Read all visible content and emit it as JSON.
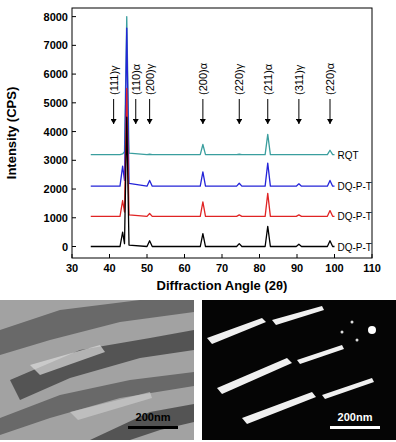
{
  "chart_data": {
    "type": "line",
    "x_label": "Diffraction Angle (2θ)",
    "y_label": "Intensity (CPS)",
    "xlim": [
      30,
      110
    ],
    "xticks": [
      30,
      40,
      50,
      60,
      70,
      80,
      90,
      100,
      110
    ],
    "ylim": [
      -400,
      8300
    ],
    "yticks": [
      0,
      1000,
      2000,
      3000,
      4000,
      5000,
      6000,
      7000,
      8000
    ],
    "grid": false,
    "x": [
      35,
      42.8,
      43.5,
      44.0,
      44.6,
      45.2,
      50.0,
      50.7,
      51.4,
      64.2,
      64.9,
      65.6,
      73.9,
      74.6,
      75.3,
      81.5,
      82.2,
      82.9,
      89.8,
      90.5,
      91.2,
      98.1,
      98.8,
      99.5,
      100
    ],
    "series": [
      {
        "name": "RQT",
        "color": "#3a9e9e",
        "values": [
          3200,
          3200,
          3220,
          3300,
          8000,
          3250,
          3200,
          3210,
          3200,
          3200,
          3550,
          3200,
          3200,
          3210,
          3200,
          3200,
          3900,
          3200,
          3200,
          3200,
          3200,
          3200,
          3350,
          3200,
          3200
        ]
      },
      {
        "name": "DQ-P-T",
        "color": "#2424d8",
        "values": [
          2100,
          2100,
          2800,
          2300,
          7600,
          2200,
          2100,
          2300,
          2100,
          2100,
          2600,
          2100,
          2100,
          2200,
          2100,
          2100,
          2900,
          2100,
          2100,
          2180,
          2100,
          2100,
          2300,
          2100,
          2100
        ]
      },
      {
        "name": "DQ-P-T",
        "color": "#e02424",
        "values": [
          1050,
          1050,
          1600,
          1200,
          5500,
          1100,
          1050,
          1150,
          1050,
          1050,
          1550,
          1050,
          1050,
          1100,
          1050,
          1050,
          1850,
          1050,
          1050,
          1100,
          1050,
          1050,
          1250,
          1050,
          1050
        ]
      },
      {
        "name": "DQ-P-T",
        "color": "#000000",
        "values": [
          0,
          0,
          500,
          100,
          4500,
          50,
          0,
          200,
          0,
          0,
          450,
          0,
          0,
          100,
          0,
          0,
          700,
          0,
          0,
          80,
          0,
          0,
          200,
          0,
          0
        ]
      }
    ],
    "annotations": [
      {
        "x": 43.5,
        "text": "(111)γ"
      },
      {
        "x": 44.6,
        "text": "(110)α"
      },
      {
        "x": 50.7,
        "text": "(200)γ"
      },
      {
        "x": 64.9,
        "text": "(200)α"
      },
      {
        "x": 74.6,
        "text": "(220)γ"
      },
      {
        "x": 82.2,
        "text": "(211)α"
      },
      {
        "x": 90.5,
        "text": "(311)γ"
      },
      {
        "x": 98.8,
        "text": "(220)α"
      }
    ]
  },
  "micrographs": [
    {
      "scale_bar": "200nm"
    },
    {
      "scale_bar": "200nm"
    }
  ]
}
